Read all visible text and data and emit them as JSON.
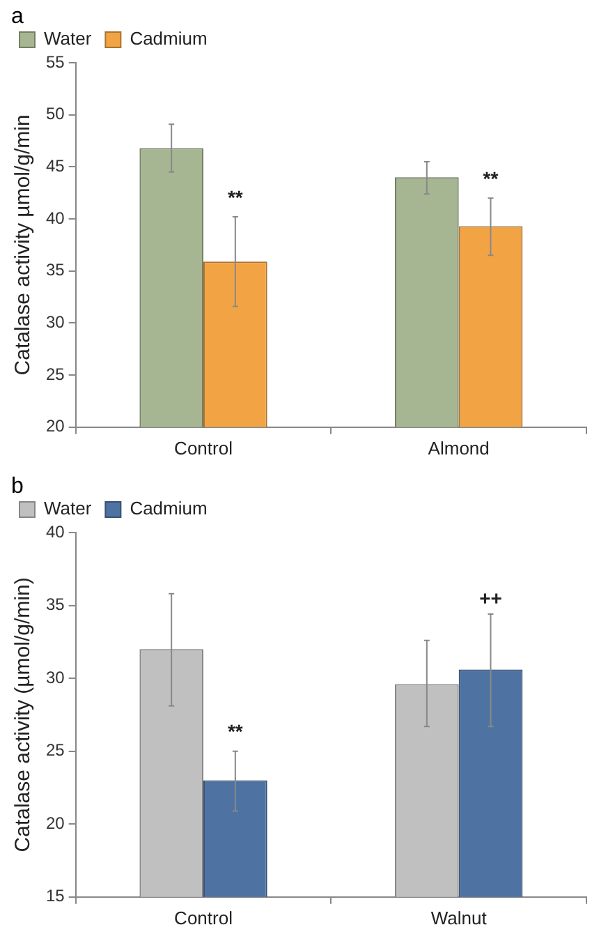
{
  "chart_data": [
    {
      "type": "bar",
      "title": "a",
      "ylabel": "Catalase activity µmol/g/min",
      "categories": [
        "Control",
        "Almond"
      ],
      "series": [
        {
          "name": "Water",
          "color": "#a6b692",
          "values": [
            46.8,
            44.0
          ],
          "errors": [
            [
              44.5,
              49.1
            ],
            [
              42.4,
              45.5
            ]
          ]
        },
        {
          "name": "Cadmium",
          "color": "#f2a444",
          "values": [
            35.9,
            39.3
          ],
          "errors": [
            [
              31.6,
              40.2
            ],
            [
              36.5,
              42.0
            ]
          ]
        }
      ],
      "ylim": [
        20,
        55
      ],
      "yticks": [
        20,
        25,
        30,
        35,
        40,
        45,
        50,
        55
      ],
      "legend": "top left",
      "grid": false,
      "annotations": [
        {
          "text": "**",
          "x": "Control",
          "y": 40.2
        },
        {
          "text": "**",
          "x": "Almond",
          "y": 42.0
        }
      ]
    },
    {
      "type": "bar",
      "title": "b",
      "ylabel": "Catalase activity (µmol/g/min)",
      "categories": [
        "Control",
        "Walnut"
      ],
      "series": [
        {
          "name": "Water",
          "color": "#c0c0c0",
          "values": [
            32.0,
            29.6
          ],
          "errors": [
            [
              28.1,
              35.8
            ],
            [
              26.7,
              32.6
            ]
          ]
        },
        {
          "name": "Cadmium",
          "color": "#4e73a3",
          "values": [
            23.0,
            30.6
          ],
          "errors": [
            [
              20.9,
              25.0
            ],
            [
              26.7,
              34.4
            ]
          ]
        }
      ],
      "ylim": [
        15,
        40
      ],
      "yticks": [
        15,
        20,
        25,
        30,
        35,
        40
      ],
      "legend": "top left",
      "grid": false,
      "annotations": [
        {
          "text": "**",
          "x": "Control",
          "y": 25.0
        },
        "++"
      ]
    }
  ]
}
